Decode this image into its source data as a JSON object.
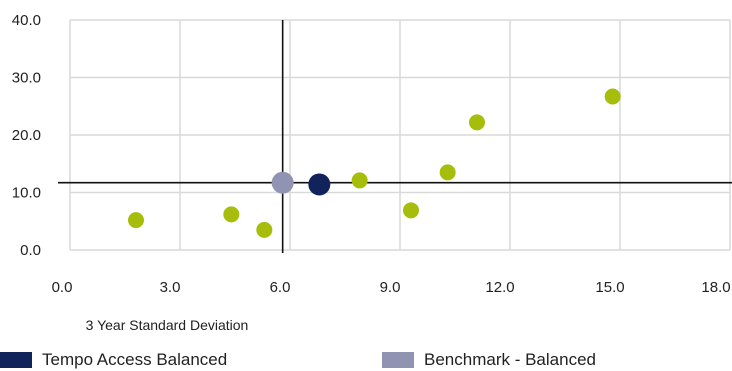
{
  "chart_data": {
    "type": "scatter",
    "title": "",
    "xlabel": "3 Year Standard Deviation",
    "ylabel": "",
    "xlim": [
      0,
      18
    ],
    "ylim": [
      0,
      40
    ],
    "x_ticks": [
      "0.0",
      "3.0",
      "6.0",
      "9.0",
      "12.0",
      "15.0",
      "18.0"
    ],
    "x_tick_values": [
      0,
      3,
      6,
      9,
      12,
      15,
      18
    ],
    "y_ticks": [
      "0.0",
      "10.0",
      "20.0",
      "30.0",
      "40.0"
    ],
    "y_tick_values": [
      0,
      10,
      20,
      30,
      40
    ],
    "grid": true,
    "reference_lines": {
      "x": 5.8,
      "y": 11.7
    },
    "series": [
      {
        "key": "peers",
        "color": "#a6bd0b",
        "points": [
          {
            "x": 1.8,
            "y": 5.2
          },
          {
            "x": 4.4,
            "y": 6.2
          },
          {
            "x": 5.3,
            "y": 3.5
          },
          {
            "x": 7.9,
            "y": 12.1
          },
          {
            "x": 9.3,
            "y": 6.9
          },
          {
            "x": 10.3,
            "y": 13.5
          },
          {
            "x": 11.1,
            "y": 22.2
          },
          {
            "x": 14.8,
            "y": 26.7
          }
        ]
      },
      {
        "key": "benchmark",
        "name": "Benchmark - Balanced",
        "color": "#9093b1",
        "points": [
          {
            "x": 5.8,
            "y": 11.7
          }
        ]
      },
      {
        "key": "fund",
        "name": "Tempo Access Balanced",
        "color": "#10235b",
        "points": [
          {
            "x": 6.8,
            "y": 11.4
          }
        ]
      }
    ],
    "legend_position": "bottom"
  }
}
